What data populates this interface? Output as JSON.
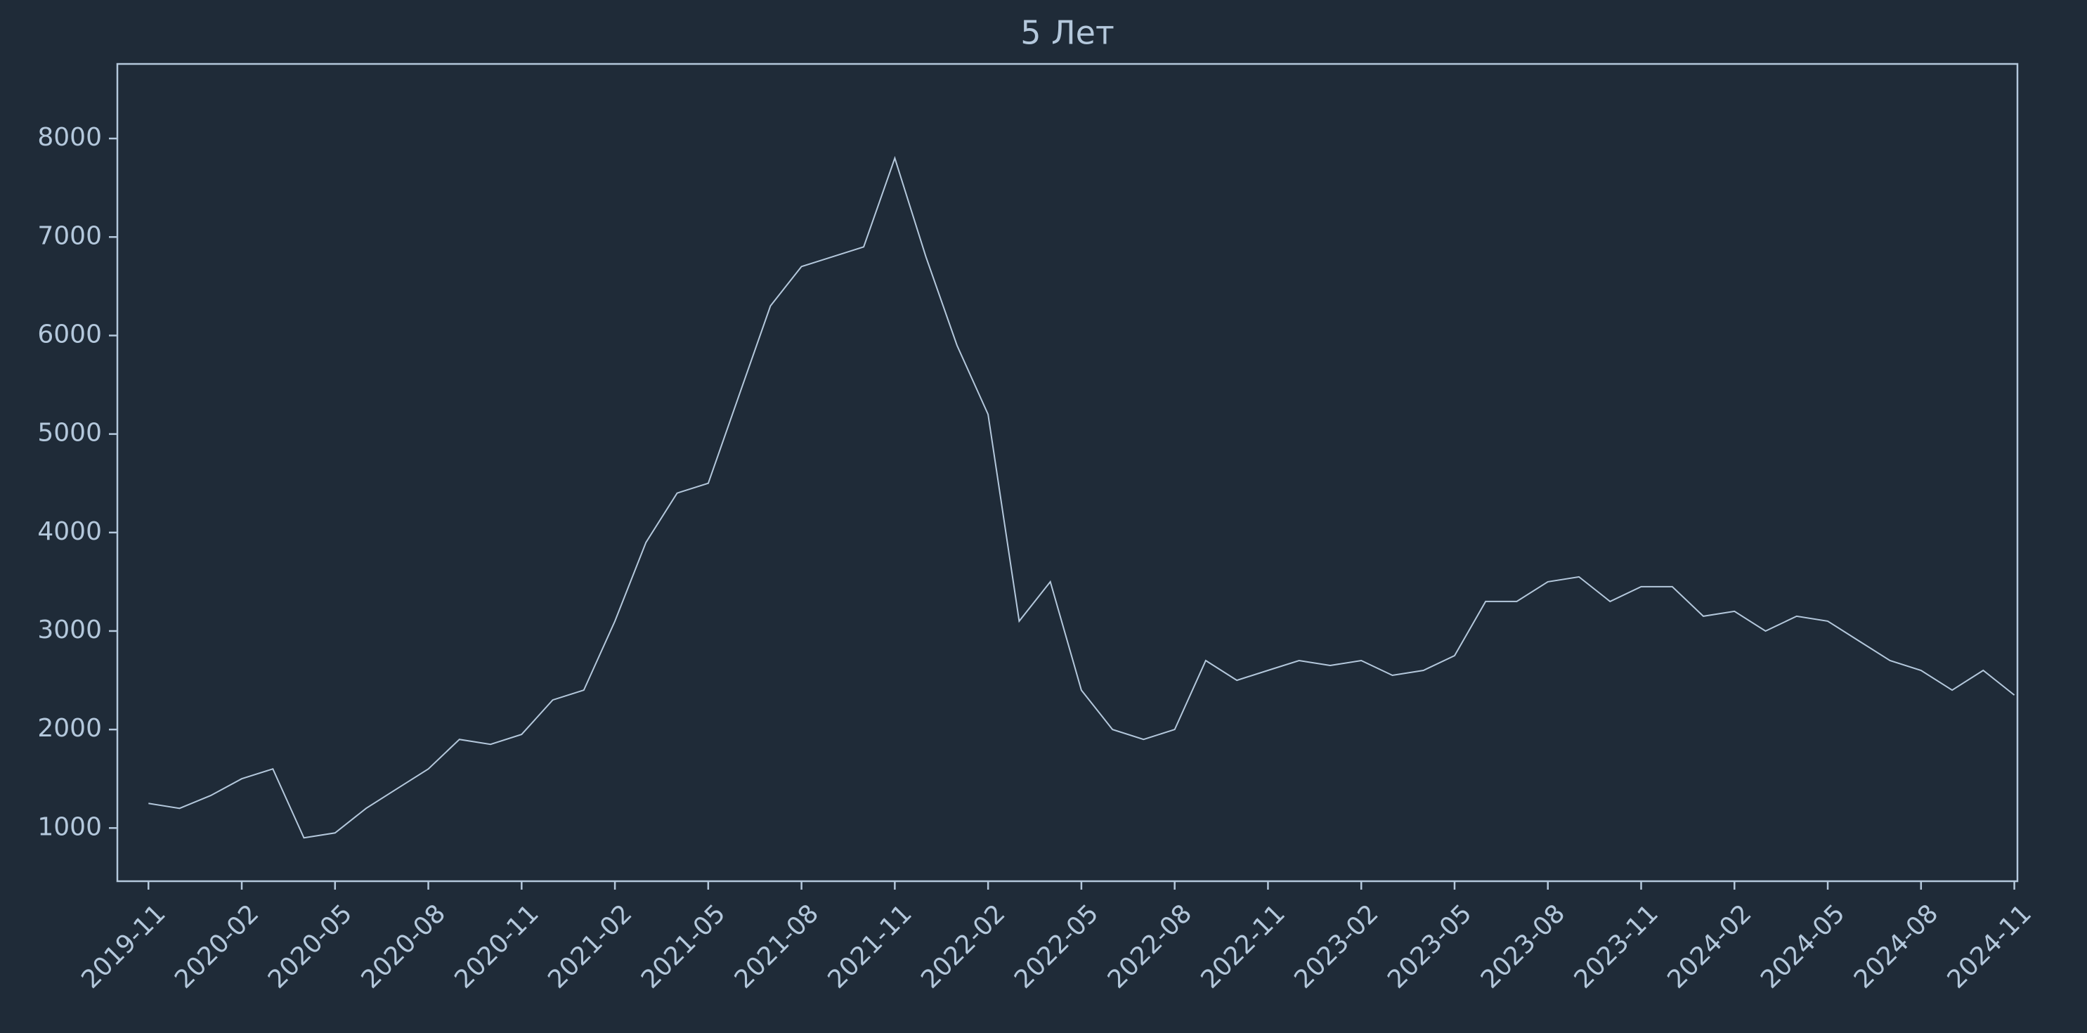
{
  "chart_data": {
    "type": "line",
    "title": "5 Лет",
    "x": [
      "2019-11",
      "2019-12",
      "2020-01",
      "2020-02",
      "2020-03",
      "2020-04",
      "2020-05",
      "2020-06",
      "2020-07",
      "2020-08",
      "2020-09",
      "2020-10",
      "2020-11",
      "2020-12",
      "2021-01",
      "2021-02",
      "2021-03",
      "2021-04",
      "2021-05",
      "2021-06",
      "2021-07",
      "2021-08",
      "2021-09",
      "2021-10",
      "2021-11",
      "2021-12",
      "2022-01",
      "2022-02",
      "2022-03",
      "2022-04",
      "2022-05",
      "2022-06",
      "2022-07",
      "2022-08",
      "2022-09",
      "2022-10",
      "2022-11",
      "2022-12",
      "2023-01",
      "2023-02",
      "2023-03",
      "2023-04",
      "2023-05",
      "2023-06",
      "2023-07",
      "2023-08",
      "2023-09",
      "2023-10",
      "2023-11",
      "2023-12",
      "2024-01",
      "2024-02",
      "2024-03",
      "2024-04",
      "2024-05",
      "2024-06",
      "2024-07",
      "2024-08",
      "2024-09",
      "2024-10",
      "2024-11"
    ],
    "values": [
      1250,
      1200,
      1330,
      1500,
      1600,
      900,
      950,
      1200,
      1400,
      1600,
      1900,
      1850,
      1950,
      2300,
      2400,
      3100,
      3900,
      4400,
      4500,
      5400,
      6300,
      6700,
      6800,
      6900,
      7800,
      6800,
      5900,
      5200,
      3100,
      3500,
      2400,
      2000,
      1900,
      2000,
      2700,
      2500,
      2600,
      2700,
      2650,
      2700,
      2550,
      2600,
      2750,
      3300,
      3300,
      3500,
      3550,
      3300,
      3450,
      3450,
      3150,
      3200,
      3000,
      3150,
      3100,
      2900,
      2700,
      2600,
      2400,
      2600,
      2350
    ],
    "color": "#b4c8dc",
    "xlim": [
      "2019-10",
      "2024-11"
    ],
    "xticks": [
      "2019-11",
      "2020-02",
      "2020-05",
      "2020-08",
      "2020-11",
      "2021-02",
      "2021-05",
      "2021-08",
      "2021-11",
      "2022-02",
      "2022-05",
      "2022-08",
      "2022-11",
      "2023-02",
      "2023-05",
      "2023-08",
      "2023-11",
      "2024-02",
      "2024-05",
      "2024-08",
      "2024-11"
    ],
    "ylim": [
      460,
      8757
    ],
    "yticks": [
      1000,
      2000,
      3000,
      4000,
      5000,
      6000,
      7000,
      8000
    ]
  }
}
